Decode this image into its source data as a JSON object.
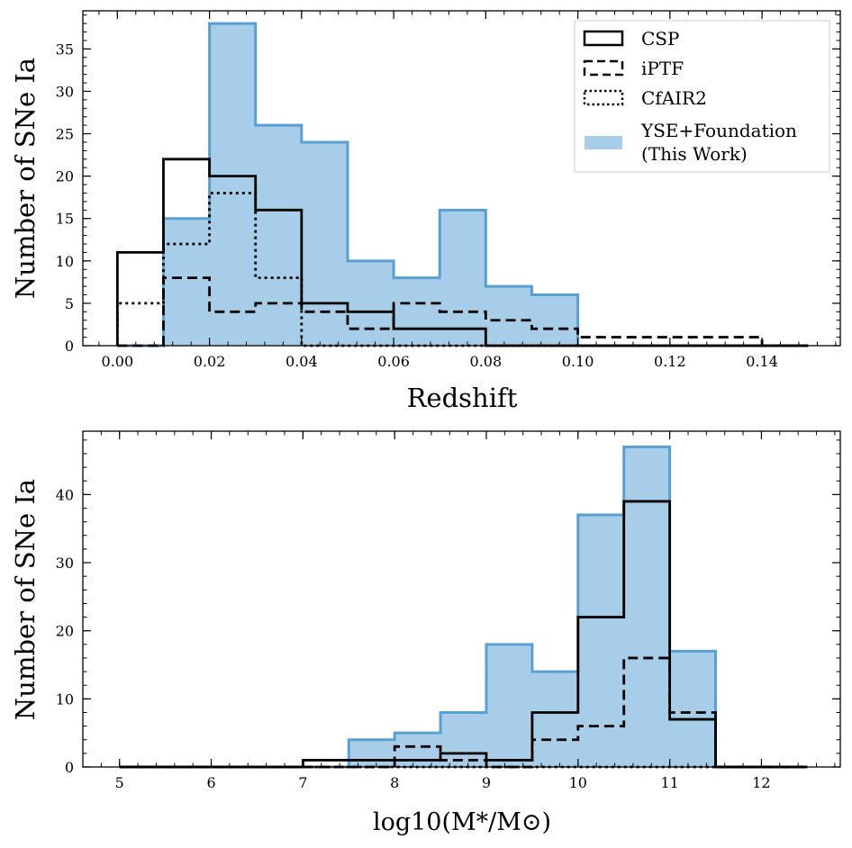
{
  "colors": {
    "fill": "#a8cde8",
    "edge": "#5a9fd2",
    "line": "#000000"
  },
  "legend": {
    "entries": [
      {
        "label": "CSP",
        "style": "solid"
      },
      {
        "label": "iPTF",
        "style": "dashed"
      },
      {
        "label": "CfAIR2",
        "style": "dotted"
      },
      {
        "label": "YSE+Foundation",
        "label2": "(This Work)",
        "style": "filled"
      }
    ]
  },
  "chart_data": [
    {
      "type": "histogram",
      "xlabel": "Redshift",
      "ylabel": "Number of SNe Ia",
      "xlim": [
        -0.0075,
        0.157
      ],
      "ylim": [
        0,
        39.5
      ],
      "xticks": [
        0.0,
        0.02,
        0.04,
        0.06,
        0.08,
        0.1,
        0.12,
        0.14
      ],
      "xtick_labels": [
        "0.00",
        "0.02",
        "0.04",
        "0.06",
        "0.08",
        "0.10",
        "0.12",
        "0.14"
      ],
      "yticks": [
        0,
        5,
        10,
        15,
        20,
        25,
        30,
        35
      ],
      "ytick_labels": [
        "0",
        "5",
        "10",
        "15",
        "20",
        "25",
        "30",
        "35"
      ],
      "bin_edges": [
        0.0,
        0.01,
        0.02,
        0.03,
        0.04,
        0.05,
        0.06,
        0.07,
        0.08,
        0.09,
        0.1,
        0.11,
        0.12,
        0.13,
        0.14,
        0.15
      ],
      "series": [
        {
          "name": "YSE+Foundation (This Work)",
          "style": "filled",
          "values": [
            0,
            15,
            38,
            26,
            24,
            10,
            8,
            16,
            7,
            6,
            0,
            0,
            0,
            0,
            0
          ]
        },
        {
          "name": "CSP",
          "style": "solid",
          "values": [
            11,
            22,
            20,
            16,
            5,
            4,
            2,
            2,
            0,
            0,
            0,
            0,
            0,
            0,
            0
          ]
        },
        {
          "name": "iPTF",
          "style": "dashed",
          "values": [
            0,
            8,
            4,
            5,
            4,
            2,
            5,
            4,
            3,
            2,
            1,
            1,
            1,
            1,
            0
          ]
        },
        {
          "name": "CfAIR2",
          "style": "dotted",
          "values": [
            5,
            12,
            18,
            8,
            0,
            0,
            0,
            0,
            0,
            0,
            0,
            0,
            0,
            0,
            0
          ]
        }
      ]
    },
    {
      "type": "histogram",
      "xlabel": "log10(M*/M⊙)",
      "ylabel": "Number of SNe Ia",
      "xlim": [
        4.6,
        12.86
      ],
      "ylim": [
        0,
        49.3
      ],
      "xticks": [
        5,
        6,
        7,
        8,
        9,
        10,
        11,
        12
      ],
      "xtick_labels": [
        "5",
        "6",
        "7",
        "8",
        "9",
        "10",
        "11",
        "12"
      ],
      "yticks": [
        0,
        10,
        20,
        30,
        40
      ],
      "ytick_labels": [
        "0",
        "10",
        "20",
        "30",
        "40"
      ],
      "bin_edges": [
        5.0,
        5.5,
        6.0,
        6.5,
        7.0,
        7.5,
        8.0,
        8.5,
        9.0,
        9.5,
        10.0,
        10.5,
        11.0,
        11.5,
        12.0,
        12.5
      ],
      "series": [
        {
          "name": "YSE+Foundation (This Work)",
          "style": "filled",
          "values": [
            0,
            0,
            0,
            0,
            0,
            4,
            5,
            8,
            18,
            14,
            37,
            47,
            17,
            0,
            0
          ]
        },
        {
          "name": "CSP",
          "style": "solid",
          "values": [
            0,
            0,
            0,
            0,
            1,
            1,
            1,
            2,
            1,
            8,
            22,
            39,
            7,
            0,
            0
          ]
        },
        {
          "name": "iPTF",
          "style": "dashed",
          "values": [
            0,
            0,
            0,
            0,
            0,
            0,
            3,
            1,
            0,
            4,
            6,
            16,
            8,
            0,
            0
          ]
        },
        {
          "name": "CfAIR2",
          "style": "dotted",
          "values": [
            0,
            0,
            0,
            0,
            0,
            0,
            0,
            0,
            0,
            0,
            0,
            0,
            0,
            0,
            0
          ]
        }
      ]
    }
  ]
}
